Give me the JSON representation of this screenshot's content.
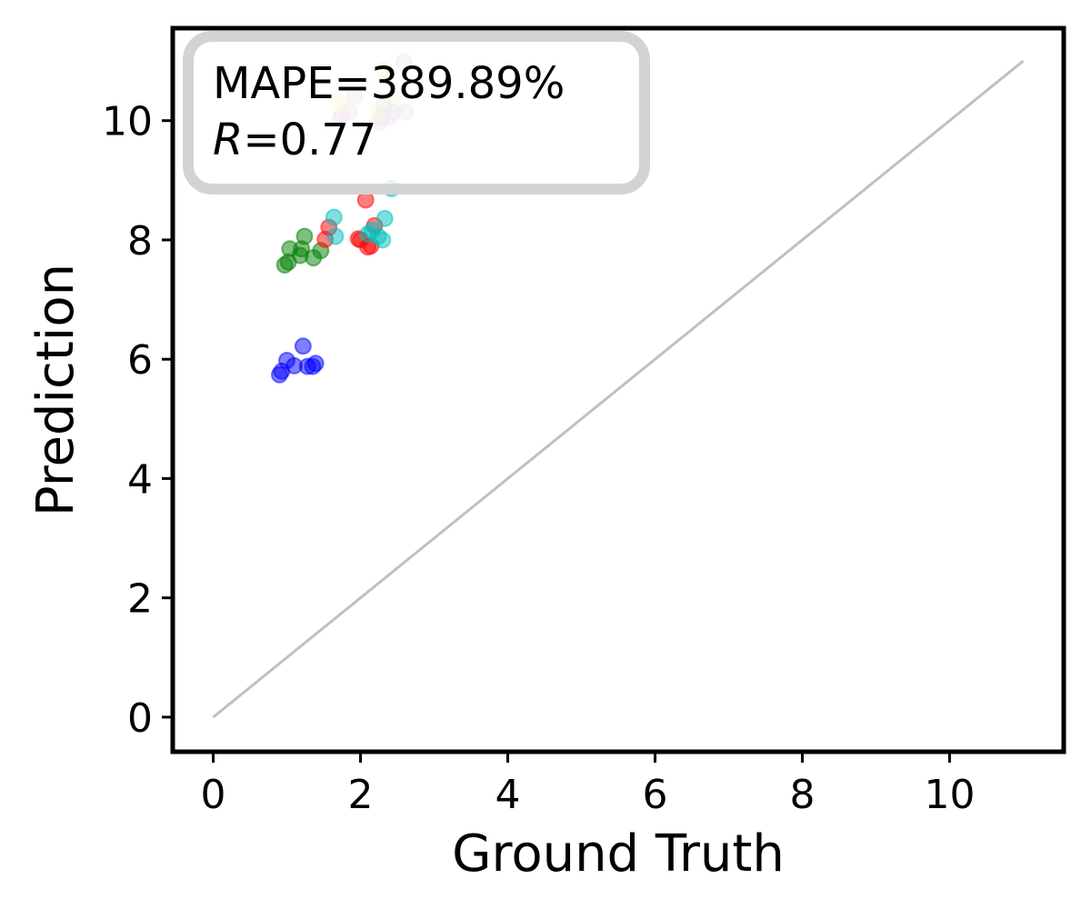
{
  "chart_data": {
    "type": "scatter",
    "xlabel": "Ground Truth",
    "ylabel": "Prediction",
    "xlim": [
      -0.55,
      11.55
    ],
    "ylim": [
      -0.58,
      11.55
    ],
    "xticks": [
      0,
      2,
      4,
      6,
      8,
      10
    ],
    "yticks": [
      0,
      2,
      4,
      6,
      8,
      10
    ],
    "grid": false,
    "reference_line": {
      "from": [
        0,
        0
      ],
      "to": [
        11,
        11
      ],
      "color": "#c0c0c0"
    },
    "annotation": {
      "line1": "MAPE=389.89%",
      "line2_italic": "R",
      "line2_rest": "=0.77",
      "placement": "top-left"
    },
    "series": [
      {
        "color": "#0000ff",
        "points": [
          [
            0.9,
            5.74
          ],
          [
            0.93,
            5.8
          ],
          [
            1.0,
            5.98
          ],
          [
            1.1,
            5.89
          ],
          [
            1.22,
            6.22
          ],
          [
            1.28,
            5.88
          ],
          [
            1.35,
            5.88
          ],
          [
            1.39,
            5.93
          ]
        ]
      },
      {
        "color": "#008000",
        "points": [
          [
            0.97,
            7.58
          ],
          [
            1.02,
            7.63
          ],
          [
            1.04,
            7.85
          ],
          [
            1.18,
            7.74
          ],
          [
            1.2,
            7.85
          ],
          [
            1.24,
            8.06
          ],
          [
            1.36,
            7.7
          ],
          [
            1.46,
            7.82
          ]
        ]
      },
      {
        "color": "#ff0000",
        "points": [
          [
            1.52,
            8.01
          ],
          [
            1.57,
            8.21
          ],
          [
            1.97,
            8.02
          ],
          [
            2.0,
            8.0
          ],
          [
            2.07,
            8.67
          ],
          [
            2.1,
            7.88
          ],
          [
            2.14,
            7.9
          ],
          [
            2.19,
            8.24
          ]
        ]
      },
      {
        "color": "#00bfbf",
        "points": [
          [
            1.64,
            8.38
          ],
          [
            1.66,
            8.06
          ],
          [
            2.1,
            8.1
          ],
          [
            2.16,
            8.16
          ],
          [
            2.24,
            8.06
          ],
          [
            2.3,
            8.0
          ],
          [
            2.33,
            8.36
          ],
          [
            2.42,
            8.86
          ]
        ]
      },
      {
        "color": "#ee82ee",
        "points": [
          [
            1.72,
            10.04
          ],
          [
            1.75,
            10.08
          ],
          [
            2.27,
            9.98
          ],
          [
            2.4,
            10.06
          ]
        ]
      },
      {
        "color": "#f0e68c",
        "points": [
          [
            1.7,
            10.32
          ],
          [
            1.74,
            10.26
          ],
          [
            2.22,
            10.05
          ],
          [
            2.25,
            10.16
          ],
          [
            2.31,
            10.84
          ],
          [
            2.33,
            10.8
          ],
          [
            2.42,
            10.3
          ],
          [
            2.48,
            10.3
          ]
        ]
      },
      {
        "color": "#a9a9a9",
        "points": [
          [
            1.84,
            10.14
          ],
          [
            1.92,
            10.4
          ],
          [
            2.28,
            10.04
          ],
          [
            2.32,
            10.25
          ],
          [
            2.44,
            10.14
          ],
          [
            2.59,
            10.98
          ],
          [
            2.61,
            10.14
          ]
        ]
      }
    ]
  }
}
